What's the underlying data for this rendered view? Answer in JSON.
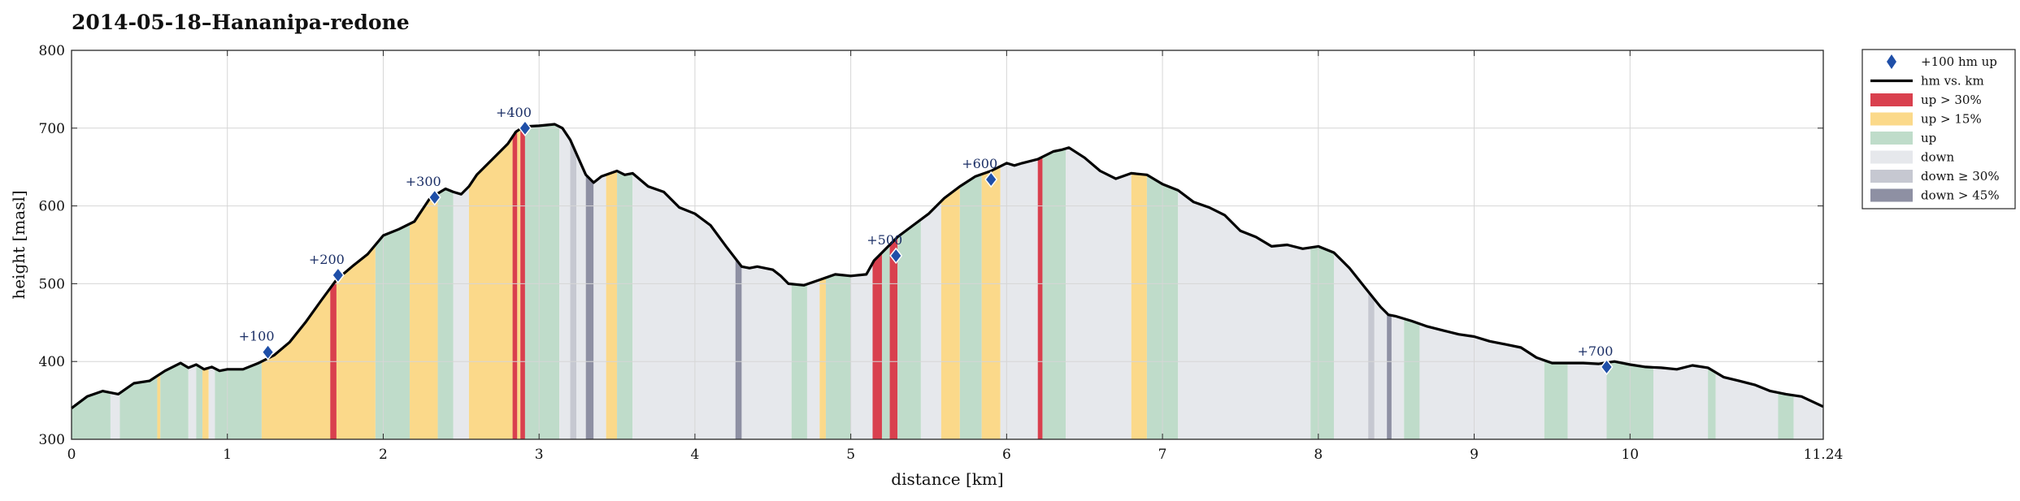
{
  "chart_data": {
    "type": "area",
    "title": "2014-05-18–Hananipa-redone",
    "xlabel": "distance [km]",
    "ylabel": "height [masl]",
    "xlim": [
      0,
      11.24
    ],
    "ylim": [
      300,
      800
    ],
    "grid": true,
    "x_ticks": [
      0,
      1,
      2,
      3,
      4,
      5,
      6,
      7,
      8,
      9,
      10,
      11.24
    ],
    "x_tick_labels": [
      "0",
      "1",
      "2",
      "3",
      "4",
      "5",
      "6",
      "7",
      "8",
      "9",
      "10",
      "11.24"
    ],
    "y_ticks": [
      300,
      400,
      500,
      600,
      700,
      800
    ],
    "y_tick_labels": [
      "300",
      "400",
      "500",
      "600",
      "700",
      "800"
    ],
    "legend_position": "outside-right",
    "legend": [
      {
        "key": "marker",
        "label": "+100 hm up",
        "color": "#1f4fa8"
      },
      {
        "key": "line",
        "label": "hm vs. km",
        "color": "#000000"
      },
      {
        "key": "up30",
        "label": "up > 30%",
        "color": "#d9404e"
      },
      {
        "key": "up15",
        "label": "up > 15%",
        "color": "#fbd98a"
      },
      {
        "key": "up",
        "label": "up",
        "color": "#bfdcca"
      },
      {
        "key": "down",
        "label": "down",
        "color": "#e6e8ec"
      },
      {
        "key": "down30",
        "label": "down ≥ 30%",
        "color": "#c6c8d1"
      },
      {
        "key": "down45",
        "label": "down > 45%",
        "color": "#8e90a3"
      }
    ],
    "series": [
      {
        "name": "hm vs. km",
        "x": [
          0,
          0.1,
          0.2,
          0.3,
          0.4,
          0.5,
          0.6,
          0.7,
          0.75,
          0.8,
          0.85,
          0.9,
          0.95,
          1.0,
          1.1,
          1.2,
          1.3,
          1.4,
          1.5,
          1.6,
          1.7,
          1.8,
          1.9,
          2.0,
          2.1,
          2.2,
          2.3,
          2.4,
          2.45,
          2.5,
          2.55,
          2.6,
          2.7,
          2.8,
          2.85,
          2.9,
          3.0,
          3.1,
          3.15,
          3.2,
          3.3,
          3.35,
          3.4,
          3.5,
          3.55,
          3.6,
          3.7,
          3.8,
          3.9,
          4.0,
          4.1,
          4.2,
          4.3,
          4.35,
          4.4,
          4.5,
          4.55,
          4.6,
          4.7,
          4.8,
          4.9,
          5.0,
          5.1,
          5.15,
          5.2,
          5.3,
          5.4,
          5.5,
          5.6,
          5.7,
          5.8,
          5.9,
          6.0,
          6.05,
          6.1,
          6.2,
          6.3,
          6.35,
          6.4,
          6.5,
          6.6,
          6.7,
          6.8,
          6.9,
          7.0,
          7.1,
          7.2,
          7.3,
          7.4,
          7.5,
          7.6,
          7.7,
          7.8,
          7.9,
          8.0,
          8.1,
          8.2,
          8.3,
          8.4,
          8.45,
          8.5,
          8.6,
          8.7,
          8.8,
          8.9,
          9.0,
          9.1,
          9.2,
          9.3,
          9.4,
          9.5,
          9.6,
          9.7,
          9.8,
          9.9,
          10.0,
          10.1,
          10.2,
          10.3,
          10.4,
          10.5,
          10.6,
          10.7,
          10.8,
          10.9,
          11.0,
          11.1,
          11.24
        ],
        "y": [
          340,
          355,
          362,
          358,
          372,
          375,
          388,
          398,
          392,
          396,
          390,
          393,
          388,
          390,
          390,
          398,
          408,
          425,
          450,
          478,
          505,
          522,
          538,
          562,
          570,
          580,
          610,
          622,
          618,
          615,
          625,
          640,
          660,
          680,
          695,
          702,
          703,
          705,
          700,
          685,
          640,
          630,
          638,
          645,
          640,
          642,
          625,
          618,
          598,
          590,
          575,
          548,
          522,
          520,
          522,
          518,
          510,
          500,
          498,
          505,
          512,
          510,
          512,
          530,
          540,
          560,
          575,
          590,
          610,
          625,
          638,
          645,
          655,
          652,
          655,
          660,
          670,
          672,
          675,
          662,
          645,
          635,
          642,
          640,
          628,
          620,
          605,
          598,
          588,
          568,
          560,
          548,
          550,
          545,
          548,
          540,
          520,
          495,
          470,
          460,
          458,
          452,
          445,
          440,
          435,
          432,
          426,
          422,
          418,
          405,
          398,
          398,
          398,
          397,
          400,
          396,
          393,
          392,
          390,
          395,
          392,
          380,
          375,
          370,
          362,
          358,
          355,
          342
        ]
      }
    ],
    "markers": [
      {
        "label": "+100",
        "x": 1.26,
        "y": 412
      },
      {
        "label": "+200",
        "x": 1.71,
        "y": 511
      },
      {
        "label": "+300",
        "x": 2.33,
        "y": 611
      },
      {
        "label": "+400",
        "x": 2.91,
        "y": 700
      },
      {
        "label": "+500",
        "x": 5.29,
        "y": 536
      },
      {
        "label": "+600",
        "x": 5.9,
        "y": 634
      },
      {
        "label": "+700",
        "x": 9.85,
        "y": 393
      }
    ],
    "segments": [
      {
        "x0": 0.0,
        "x1": 0.25,
        "type": "up"
      },
      {
        "x0": 0.25,
        "x1": 0.31,
        "type": "down"
      },
      {
        "x0": 0.31,
        "x1": 0.55,
        "type": "up"
      },
      {
        "x0": 0.55,
        "x1": 0.57,
        "type": "up15"
      },
      {
        "x0": 0.57,
        "x1": 0.75,
        "type": "up"
      },
      {
        "x0": 0.75,
        "x1": 0.8,
        "type": "down"
      },
      {
        "x0": 0.8,
        "x1": 0.84,
        "type": "up"
      },
      {
        "x0": 0.84,
        "x1": 0.88,
        "type": "up15"
      },
      {
        "x0": 0.88,
        "x1": 0.92,
        "type": "down"
      },
      {
        "x0": 0.92,
        "x1": 1.22,
        "type": "up"
      },
      {
        "x0": 1.22,
        "x1": 1.66,
        "type": "up15"
      },
      {
        "x0": 1.66,
        "x1": 1.7,
        "type": "up30"
      },
      {
        "x0": 1.7,
        "x1": 1.95,
        "type": "up15"
      },
      {
        "x0": 1.95,
        "x1": 2.17,
        "type": "up"
      },
      {
        "x0": 2.17,
        "x1": 2.35,
        "type": "up15"
      },
      {
        "x0": 2.35,
        "x1": 2.45,
        "type": "up"
      },
      {
        "x0": 2.45,
        "x1": 2.55,
        "type": "down"
      },
      {
        "x0": 2.55,
        "x1": 2.83,
        "type": "up15"
      },
      {
        "x0": 2.83,
        "x1": 2.86,
        "type": "up30"
      },
      {
        "x0": 2.86,
        "x1": 2.88,
        "type": "up15"
      },
      {
        "x0": 2.88,
        "x1": 2.91,
        "type": "up30"
      },
      {
        "x0": 2.91,
        "x1": 3.0,
        "type": "up"
      },
      {
        "x0": 3.0,
        "x1": 3.13,
        "type": "up"
      },
      {
        "x0": 3.13,
        "x1": 3.2,
        "type": "down"
      },
      {
        "x0": 3.2,
        "x1": 3.24,
        "type": "down30"
      },
      {
        "x0": 3.24,
        "x1": 3.3,
        "type": "down"
      },
      {
        "x0": 3.3,
        "x1": 3.35,
        "type": "down45"
      },
      {
        "x0": 3.35,
        "x1": 3.43,
        "type": "down"
      },
      {
        "x0": 3.43,
        "x1": 3.5,
        "type": "up15"
      },
      {
        "x0": 3.5,
        "x1": 3.6,
        "type": "up"
      },
      {
        "x0": 3.6,
        "x1": 4.26,
        "type": "down"
      },
      {
        "x0": 4.26,
        "x1": 4.3,
        "type": "down45"
      },
      {
        "x0": 4.3,
        "x1": 4.62,
        "type": "down"
      },
      {
        "x0": 4.62,
        "x1": 4.72,
        "type": "up"
      },
      {
        "x0": 4.72,
        "x1": 4.8,
        "type": "down"
      },
      {
        "x0": 4.8,
        "x1": 4.84,
        "type": "up15"
      },
      {
        "x0": 4.84,
        "x1": 5.0,
        "type": "up"
      },
      {
        "x0": 5.0,
        "x1": 5.14,
        "type": "down"
      },
      {
        "x0": 5.14,
        "x1": 5.2,
        "type": "up30"
      },
      {
        "x0": 5.2,
        "x1": 5.25,
        "type": "up"
      },
      {
        "x0": 5.25,
        "x1": 5.3,
        "type": "up30"
      },
      {
        "x0": 5.3,
        "x1": 5.45,
        "type": "up"
      },
      {
        "x0": 5.45,
        "x1": 5.58,
        "type": "down"
      },
      {
        "x0": 5.58,
        "x1": 5.7,
        "type": "up15"
      },
      {
        "x0": 5.7,
        "x1": 5.84,
        "type": "up"
      },
      {
        "x0": 5.84,
        "x1": 5.96,
        "type": "up15"
      },
      {
        "x0": 5.96,
        "x1": 6.2,
        "type": "down"
      },
      {
        "x0": 6.2,
        "x1": 6.23,
        "type": "up30"
      },
      {
        "x0": 6.23,
        "x1": 6.38,
        "type": "up"
      },
      {
        "x0": 6.38,
        "x1": 6.8,
        "type": "down"
      },
      {
        "x0": 6.8,
        "x1": 6.9,
        "type": "up15"
      },
      {
        "x0": 6.9,
        "x1": 7.1,
        "type": "up"
      },
      {
        "x0": 7.1,
        "x1": 7.95,
        "type": "down"
      },
      {
        "x0": 7.95,
        "x1": 8.1,
        "type": "up"
      },
      {
        "x0": 8.1,
        "x1": 8.32,
        "type": "down"
      },
      {
        "x0": 8.32,
        "x1": 8.36,
        "type": "down30"
      },
      {
        "x0": 8.36,
        "x1": 8.44,
        "type": "down"
      },
      {
        "x0": 8.44,
        "x1": 8.47,
        "type": "down45"
      },
      {
        "x0": 8.47,
        "x1": 8.55,
        "type": "down"
      },
      {
        "x0": 8.55,
        "x1": 8.65,
        "type": "up"
      },
      {
        "x0": 8.65,
        "x1": 9.45,
        "type": "down"
      },
      {
        "x0": 9.45,
        "x1": 9.6,
        "type": "up"
      },
      {
        "x0": 9.6,
        "x1": 9.85,
        "type": "down"
      },
      {
        "x0": 9.85,
        "x1": 10.15,
        "type": "up"
      },
      {
        "x0": 10.15,
        "x1": 10.5,
        "type": "down"
      },
      {
        "x0": 10.5,
        "x1": 10.55,
        "type": "up"
      },
      {
        "x0": 10.55,
        "x1": 10.95,
        "type": "down"
      },
      {
        "x0": 10.95,
        "x1": 11.05,
        "type": "up"
      },
      {
        "x0": 11.05,
        "x1": 11.24,
        "type": "down"
      }
    ],
    "colors": {
      "line": "#000000",
      "marker_fill": "#1f4fa8",
      "grid": "#d6d6d6",
      "marker_label": "#1b2f66"
    }
  }
}
